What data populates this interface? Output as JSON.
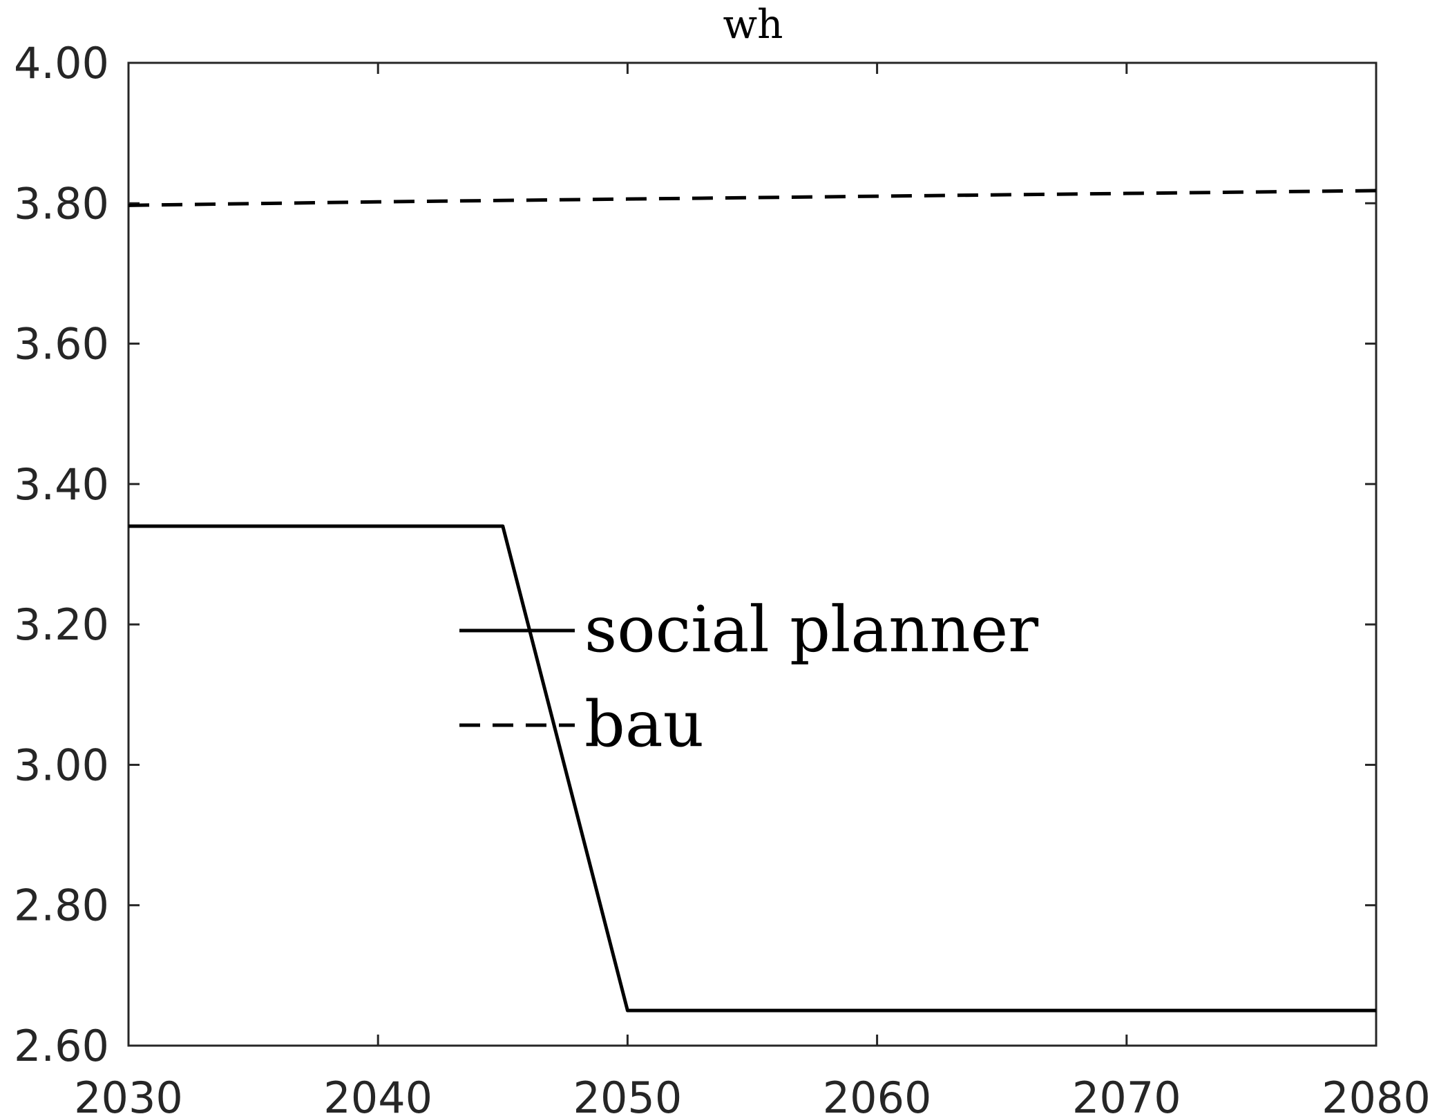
{
  "chart_data": {
    "type": "line",
    "title": "wh",
    "xlabel": "",
    "ylabel": "",
    "xlim": [
      2030,
      2080
    ],
    "ylim": [
      2.6,
      4.0
    ],
    "xticks": [
      2030,
      2040,
      2050,
      2060,
      2070,
      2080
    ],
    "xtick_labels": [
      "2030",
      "2040",
      "2050",
      "2060",
      "2070",
      "2080"
    ],
    "yticks": [
      2.6,
      2.8,
      3.0,
      3.2,
      3.4,
      3.6,
      3.8,
      4.0
    ],
    "ytick_labels": [
      "2.60",
      "2.80",
      "3.00",
      "3.20",
      "3.40",
      "3.60",
      "3.80",
      "4.00"
    ],
    "grid": false,
    "legend_position": "center",
    "series": [
      {
        "name": "social planner",
        "style": "solid",
        "color": "#000000",
        "x": [
          2030,
          2045,
          2050,
          2080
        ],
        "y": [
          3.34,
          3.34,
          2.65,
          2.65
        ]
      },
      {
        "name": "bau",
        "style": "dashed",
        "color": "#000000",
        "x": [
          2030,
          2040,
          2050,
          2060,
          2070,
          2080
        ],
        "y": [
          3.797,
          3.802,
          3.806,
          3.81,
          3.814,
          3.818
        ]
      }
    ]
  }
}
